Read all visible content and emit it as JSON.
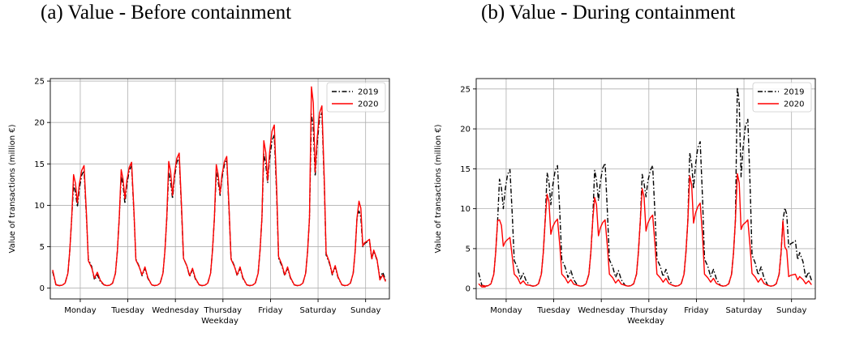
{
  "captions": [
    "(a) Value - Before containment",
    "(b) Value - During containment"
  ],
  "chart_data": [
    {
      "type": "line",
      "title": "(a) Value - Before containment",
      "xlabel": "Weekday",
      "ylabel": "Value of transactions (million €)",
      "ylim": [
        -1.3,
        25.3
      ],
      "yticks": [
        0,
        5,
        10,
        15,
        20,
        25
      ],
      "categories": [
        "Monday",
        "Tuesday",
        "Wednesday",
        "Thursday",
        "Friday",
        "Saturday",
        "Sunday"
      ],
      "grid": true,
      "legend_position": "top-right",
      "series": [
        {
          "name": "2019",
          "color": "#000000",
          "style": "dashdot",
          "start": [
            2.0,
            0.4,
            0.3
          ],
          "days": [
            {
              "morning": 12.5,
              "dip": 9.8,
              "afternoon": 14.2,
              "evening": 3.5,
              "late": 1.0
            },
            {
              "morning": 13.5,
              "dip": 10.2,
              "afternoon": 14.8,
              "evening": 3.5,
              "late": 1.5
            },
            {
              "morning": 14.0,
              "dip": 10.8,
              "afternoon": 15.8,
              "evening": 3.6,
              "late": 1.4
            },
            {
              "morning": 14.0,
              "dip": 11.2,
              "afternoon": 15.5,
              "evening": 3.6,
              "late": 1.5
            },
            {
              "morning": 16.2,
              "dip": 12.7,
              "afternoon": 18.5,
              "evening": 3.6,
              "late": 1.5
            },
            {
              "morning": 21.0,
              "dip": 13.5,
              "afternoon": 21.2,
              "evening": 4.0,
              "late": 1.6
            },
            {
              "morning": 9.3,
              "dip": 5.0,
              "afternoon": 5.8,
              "evening": 4.5,
              "late": 1.2
            }
          ]
        },
        {
          "name": "2020",
          "color": "#ff0000",
          "style": "solid",
          "start": [
            2.2,
            0.4,
            0.3
          ],
          "days": [
            {
              "morning": 13.7,
              "dip": 10.3,
              "afternoon": 14.8,
              "evening": 3.3,
              "late": 1.2
            },
            {
              "morning": 14.3,
              "dip": 10.8,
              "afternoon": 15.2,
              "evening": 3.4,
              "late": 1.6
            },
            {
              "morning": 15.3,
              "dip": 11.2,
              "afternoon": 16.3,
              "evening": 3.6,
              "late": 1.5
            },
            {
              "morning": 14.9,
              "dip": 11.4,
              "afternoon": 15.9,
              "evening": 3.5,
              "late": 1.6
            },
            {
              "morning": 17.8,
              "dip": 13.0,
              "afternoon": 19.7,
              "evening": 3.8,
              "late": 1.6
            },
            {
              "morning": 24.3,
              "dip": 14.0,
              "afternoon": 22.0,
              "evening": 4.2,
              "late": 1.7
            },
            {
              "morning": 10.5,
              "dip": 5.1,
              "afternoon": 5.9,
              "evening": 4.6,
              "late": 1.0
            }
          ]
        }
      ]
    },
    {
      "type": "line",
      "title": "(b) Value - During containment",
      "xlabel": "Weekday",
      "ylabel": "Value of transactions (million €)",
      "ylim": [
        -1.3,
        26.3
      ],
      "yticks": [
        0,
        5,
        10,
        15,
        20,
        25
      ],
      "categories": [
        "Monday",
        "Tuesday",
        "Wednesday",
        "Thursday",
        "Friday",
        "Saturday",
        "Sunday"
      ],
      "grid": true,
      "legend_position": "top-right",
      "series": [
        {
          "name": "2019",
          "color": "#000000",
          "style": "dashdot",
          "start": [
            2.0,
            0.4,
            0.3
          ],
          "days": [
            {
              "morning": 13.7,
              "dip": 10.0,
              "afternoon": 14.9,
              "evening": 3.5,
              "late": 1.2
            },
            {
              "morning": 14.5,
              "dip": 10.5,
              "afternoon": 15.4,
              "evening": 3.6,
              "late": 1.4
            },
            {
              "morning": 14.8,
              "dip": 11.0,
              "afternoon": 15.7,
              "evening": 3.6,
              "late": 1.4
            },
            {
              "morning": 14.3,
              "dip": 11.5,
              "afternoon": 15.4,
              "evening": 3.7,
              "late": 1.5
            },
            {
              "morning": 17.0,
              "dip": 12.5,
              "afternoon": 18.4,
              "evening": 3.7,
              "late": 1.5
            },
            {
              "morning": 25.2,
              "dip": 14.0,
              "afternoon": 21.2,
              "evening": 4.2,
              "late": 1.7
            },
            {
              "morning": 10.1,
              "dip": 5.2,
              "afternoon": 6.0,
              "evening": 4.5,
              "late": 1.3
            }
          ]
        },
        {
          "name": "2020",
          "color": "#ff0000",
          "style": "solid",
          "start": [
            0.6,
            0.2,
            0.2
          ],
          "days": [
            {
              "morning": 8.6,
              "dip": 5.3,
              "afternoon": 6.4,
              "evening": 1.8,
              "late": 0.6
            },
            {
              "morning": 11.8,
              "dip": 6.8,
              "afternoon": 8.7,
              "evening": 1.8,
              "late": 0.7
            },
            {
              "morning": 11.4,
              "dip": 6.6,
              "afternoon": 8.6,
              "evening": 1.8,
              "late": 0.7
            },
            {
              "morning": 12.5,
              "dip": 7.2,
              "afternoon": 9.2,
              "evening": 1.8,
              "late": 0.8
            },
            {
              "morning": 14.1,
              "dip": 8.2,
              "afternoon": 10.7,
              "evening": 1.8,
              "late": 0.8
            },
            {
              "morning": 14.4,
              "dip": 7.4,
              "afternoon": 8.6,
              "evening": 1.9,
              "late": 0.8
            },
            {
              "morning": 5.2,
              "dip": 1.5,
              "afternoon": 1.8,
              "evening": 1.5,
              "late": 0.6
            }
          ]
        }
      ]
    }
  ]
}
